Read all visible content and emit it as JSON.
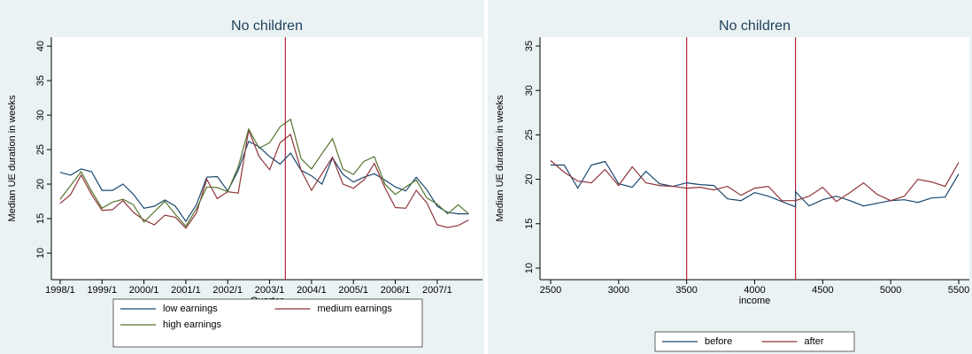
{
  "chart_data": [
    {
      "type": "line",
      "title": "No children",
      "xlabel": "Quarter",
      "ylabel": "Median UE duration in weeks",
      "x": [
        1998,
        1998.25,
        1998.5,
        1998.75,
        1999,
        1999.25,
        1999.5,
        1999.75,
        2000,
        2000.25,
        2000.5,
        2000.75,
        2001,
        2001.25,
        2001.5,
        2001.75,
        2002,
        2002.25,
        2002.5,
        2002.75,
        2003,
        2003.25,
        2003.5,
        2003.75,
        2004,
        2004.25,
        2004.5,
        2004.75,
        2005,
        2005.25,
        2005.5,
        2005.75,
        2006,
        2006.25,
        2006.5,
        2006.75,
        2007,
        2007.25,
        2007.5,
        2007.75
      ],
      "series": [
        {
          "name": "low earnings",
          "color": "#1a476f",
          "values": [
            21.7,
            21.3,
            22.2,
            21.8,
            19.1,
            19.1,
            20.0,
            18.5,
            16.5,
            16.8,
            17.7,
            16.8,
            14.6,
            17.0,
            21.0,
            21.1,
            19.0,
            22.0,
            26.2,
            25.4,
            24.0,
            22.9,
            24.5,
            22.0,
            21.2,
            20.0,
            23.8,
            21.4,
            20.3,
            21.0,
            21.5,
            20.6,
            19.6,
            19.0,
            21.0,
            19.2,
            16.8,
            15.9,
            15.7,
            15.7
          ]
        },
        {
          "name": "medium earnings",
          "color": "#90353b",
          "values": [
            17.2,
            18.5,
            21.3,
            18.5,
            16.2,
            16.3,
            17.6,
            15.9,
            14.8,
            14.1,
            15.5,
            15.2,
            13.6,
            15.8,
            20.7,
            17.9,
            18.9,
            18.7,
            27.8,
            24.0,
            22.1,
            26.0,
            27.2,
            22.0,
            19.1,
            21.5,
            23.9,
            20.0,
            19.4,
            20.6,
            23.0,
            19.5,
            16.6,
            16.5,
            19.1,
            17.3,
            14.1,
            13.7,
            14.0,
            14.8
          ]
        },
        {
          "name": "high earnings",
          "color": "#55752f",
          "values": [
            17.8,
            19.8,
            21.8,
            19.0,
            16.5,
            17.4,
            17.8,
            17.0,
            14.5,
            16.0,
            17.5,
            15.6,
            13.9,
            16.4,
            19.6,
            19.5,
            18.9,
            22.5,
            28.0,
            25.2,
            26.0,
            28.3,
            29.4,
            23.7,
            22.2,
            24.4,
            26.6,
            22.2,
            21.4,
            23.3,
            24.0,
            20.0,
            18.5,
            19.6,
            20.6,
            18.0,
            17.1,
            15.7,
            17.0,
            15.7
          ]
        }
      ],
      "xlim": [
        1997.79,
        2008.08
      ],
      "ylim": [
        6.15,
        41.3
      ],
      "xticks": [
        {
          "value": 1998,
          "label": "1998/1"
        },
        {
          "value": 1999,
          "label": "1999/1"
        },
        {
          "value": 2000,
          "label": "2000/1"
        },
        {
          "value": 2001,
          "label": "2001/1"
        },
        {
          "value": 2002,
          "label": "2002/1"
        },
        {
          "value": 2003,
          "label": "2003/1"
        },
        {
          "value": 2004,
          "label": "2004/1"
        },
        {
          "value": 2005,
          "label": "2005/1"
        },
        {
          "value": 2006,
          "label": "2006/1"
        },
        {
          "value": 2007,
          "label": "2007/1"
        }
      ],
      "yticks": [
        10,
        15,
        20,
        25,
        30,
        35,
        40
      ],
      "vlines": [
        2003.375
      ],
      "vline_color": "#b2223c"
    },
    {
      "type": "line",
      "title": "No children",
      "xlabel": "income",
      "ylabel": "Median UE duration in weeks",
      "series": [
        {
          "name": "before",
          "color": "#1a476f",
          "x": [
            2500,
            2600,
            2700,
            2800,
            2900,
            3000,
            3100,
            3200,
            3300,
            3400,
            3500,
            3600,
            3700,
            3800,
            3900,
            4000,
            4100,
            4200,
            4300,
            4300,
            4400,
            4500,
            4600,
            4700,
            4800,
            4900,
            5000,
            5100,
            5200,
            5300,
            5400,
            5500
          ],
          "values": [
            21.6,
            21.6,
            19.0,
            21.6,
            22.0,
            19.5,
            19.1,
            20.9,
            19.5,
            19.2,
            19.6,
            19.4,
            19.3,
            17.8,
            17.6,
            18.5,
            18.1,
            17.5,
            16.9,
            18.6,
            17.0,
            17.7,
            18.1,
            17.6,
            17.0,
            17.3,
            17.6,
            17.7,
            17.4,
            17.9,
            18.0,
            20.6
          ]
        },
        {
          "name": "after",
          "color": "#90353b",
          "x": [
            2500,
            2600,
            2700,
            2800,
            2900,
            3000,
            3100,
            3200,
            3300,
            3400,
            3500,
            3600,
            3700,
            3800,
            3900,
            4000,
            4100,
            4200,
            4300,
            4400,
            4500,
            4600,
            4700,
            4800,
            4900,
            5000,
            5100,
            5200,
            5300,
            5400,
            5500
          ],
          "values": [
            22.1,
            20.8,
            19.8,
            19.6,
            21.1,
            19.3,
            21.4,
            19.6,
            19.3,
            19.2,
            19.0,
            19.1,
            18.8,
            19.2,
            18.2,
            19.0,
            19.2,
            17.6,
            17.6,
            18.1,
            19.1,
            17.5,
            18.5,
            19.6,
            18.3,
            17.6,
            18.1,
            20.0,
            19.7,
            19.2,
            21.9
          ]
        }
      ],
      "xlim": [
        2422,
        5578
      ],
      "ylim": [
        8.7,
        36
      ],
      "xticks": [
        2500,
        3000,
        3500,
        4000,
        4500,
        5000,
        5500
      ],
      "yticks": [
        10,
        15,
        20,
        25,
        30,
        35
      ],
      "vlines": [
        3500,
        4300
      ],
      "vline_color": "#b2223c"
    }
  ]
}
